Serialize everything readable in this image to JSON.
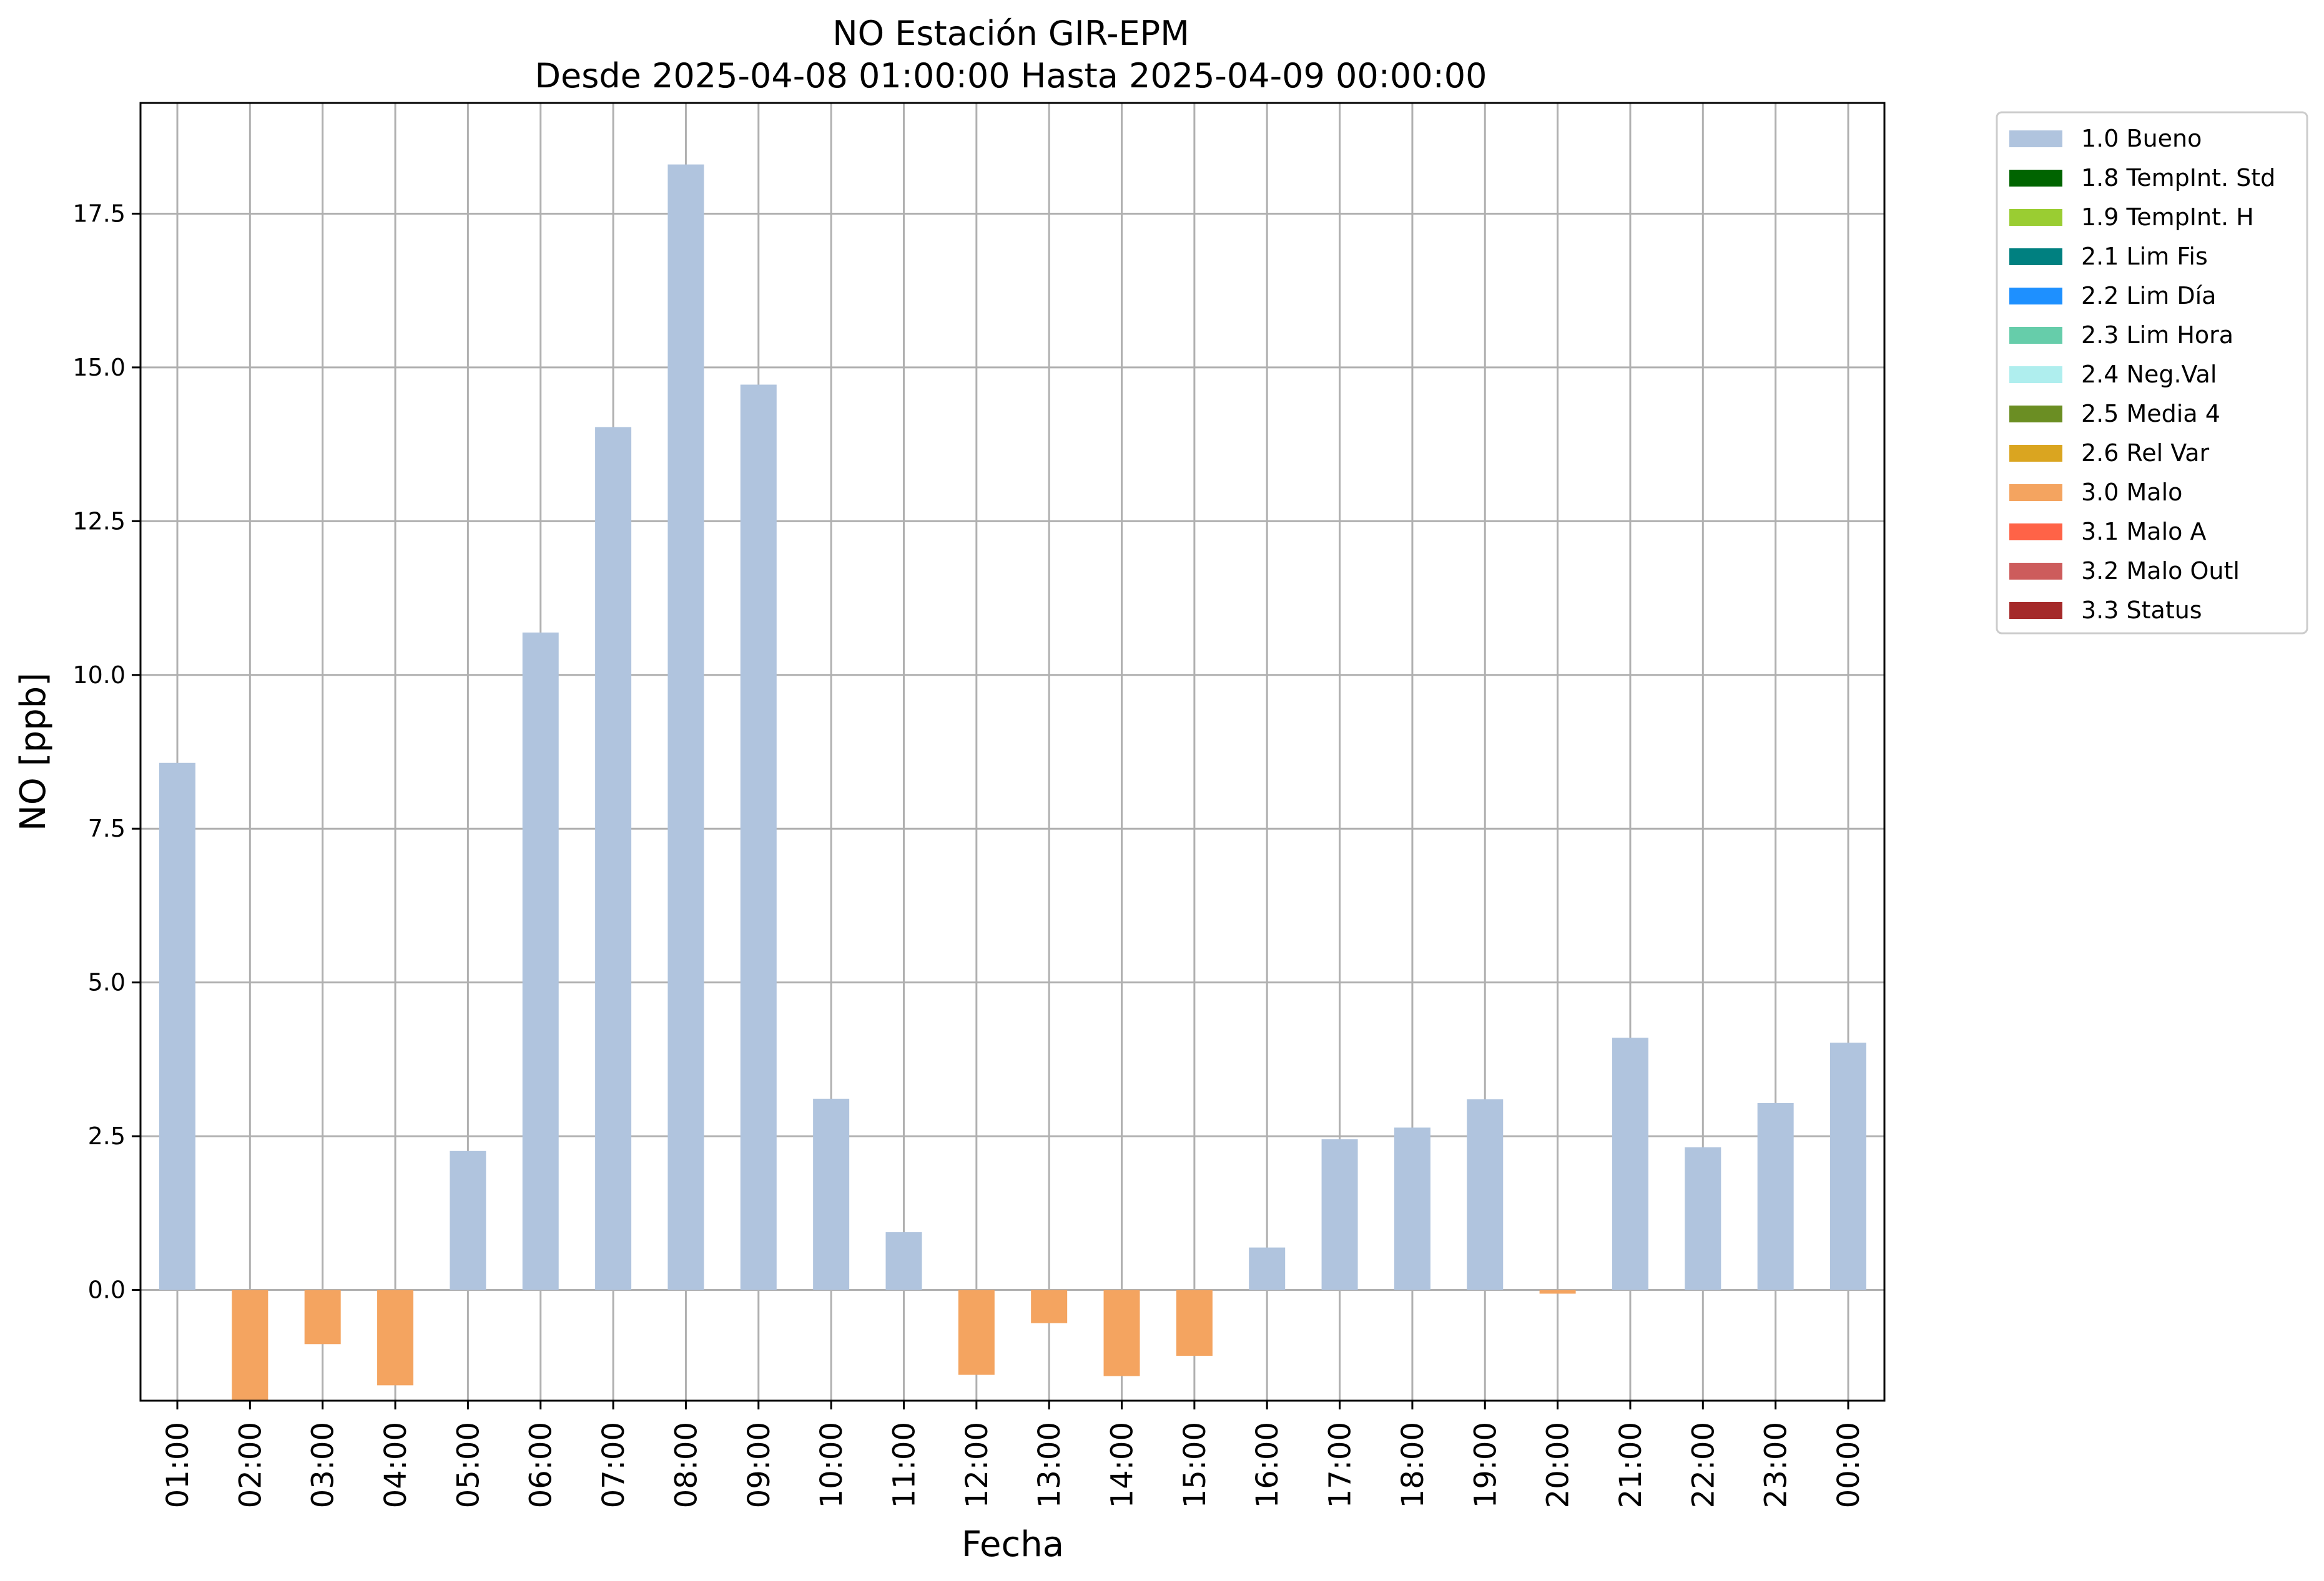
{
  "chart_data": {
    "type": "bar",
    "title": "NO Estación GIR-EPM",
    "subtitle": "Desde 2025-04-08 01:00:00 Hasta 2025-04-09 00:00:00",
    "xlabel": "Fecha",
    "ylabel": "NO [ppb]",
    "ylim": [
      -1.8,
      19.3
    ],
    "yticks": [
      "0.0",
      "2.5",
      "5.0",
      "7.5",
      "10.0",
      "12.5",
      "15.0",
      "17.5"
    ],
    "grid": true,
    "legend_position": "outside right, top",
    "categories": [
      "01:00",
      "02:00",
      "03:00",
      "04:00",
      "05:00",
      "06:00",
      "07:00",
      "08:00",
      "09:00",
      "10:00",
      "11:00",
      "12:00",
      "13:00",
      "14:00",
      "15:00",
      "16:00",
      "17:00",
      "18:00",
      "19:00",
      "20:00",
      "21:00",
      "22:00",
      "23:00",
      "00:00"
    ],
    "values": [
      8.57,
      -1.8,
      -0.88,
      -1.55,
      2.26,
      10.69,
      14.03,
      18.3,
      14.72,
      3.11,
      0.94,
      -1.38,
      -0.54,
      -1.4,
      -1.07,
      0.69,
      2.45,
      2.64,
      3.1,
      -0.06,
      4.1,
      2.32,
      3.04,
      4.02
    ],
    "flags": [
      "1.0 Bueno",
      "3.0 Malo",
      "3.0 Malo",
      "3.0 Malo",
      "1.0 Bueno",
      "1.0 Bueno",
      "1.0 Bueno",
      "1.0 Bueno",
      "1.0 Bueno",
      "1.0 Bueno",
      "1.0 Bueno",
      "3.0 Malo",
      "3.0 Malo",
      "3.0 Malo",
      "3.0 Malo",
      "1.0 Bueno",
      "1.0 Bueno",
      "1.0 Bueno",
      "1.0 Bueno",
      "3.0 Malo",
      "1.0 Bueno",
      "1.0 Bueno",
      "1.0 Bueno",
      "1.0 Bueno"
    ],
    "legend": [
      {
        "label": "1.0 Bueno",
        "color": "#b0c4de"
      },
      {
        "label": "1.8 TempInt. Std",
        "color": "#006400"
      },
      {
        "label": "1.9 TempInt. H",
        "color": "#9acd32"
      },
      {
        "label": "2.1 Lim Fis",
        "color": "#008080"
      },
      {
        "label": "2.2 Lim Día",
        "color": "#1e90ff"
      },
      {
        "label": "2.3 Lim Hora",
        "color": "#66cdaa"
      },
      {
        "label": "2.4 Neg.Val",
        "color": "#afeeee"
      },
      {
        "label": "2.5 Media 4",
        "color": "#6b8e23"
      },
      {
        "label": "2.6 Rel Var",
        "color": "#daa520"
      },
      {
        "label": "3.0 Malo",
        "color": "#f4a460"
      },
      {
        "label": "3.1 Malo A",
        "color": "#ff6347"
      },
      {
        "label": "3.2 Malo Outl",
        "color": "#cd5c5c"
      },
      {
        "label": "3.3 Status",
        "color": "#a52a2a"
      }
    ]
  }
}
